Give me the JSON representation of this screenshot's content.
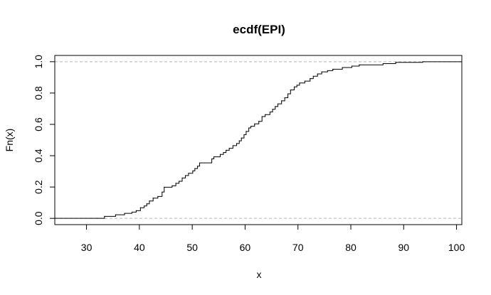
{
  "chart_data": {
    "type": "line",
    "title": "ecdf(EPI)",
    "xlabel": "x",
    "ylabel": "Fn(x)",
    "xlim": [
      24,
      101
    ],
    "ylim": [
      -0.04,
      1.04
    ],
    "x_ticks": [
      30,
      40,
      50,
      60,
      70,
      80,
      90,
      100
    ],
    "x_tick_labels": [
      "30",
      "40",
      "50",
      "60",
      "70",
      "80",
      "90",
      "100"
    ],
    "y_ticks": [
      0.0,
      0.2,
      0.4,
      0.6,
      0.8,
      1.0
    ],
    "y_tick_labels": [
      "0.0",
      "0.2",
      "0.4",
      "0.6",
      "0.8",
      "1.0"
    ],
    "reference_lines_y": [
      0,
      1
    ],
    "series": [
      {
        "step": true,
        "x": [
          32.1,
          33.4,
          35.5,
          37.2,
          38.6,
          39.4,
          40.2,
          40.9,
          41.4,
          41.9,
          42.6,
          43.5,
          44.3,
          44.7,
          46.2,
          46.9,
          47.5,
          48.1,
          48.7,
          49.3,
          50.1,
          50.5,
          51.0,
          51.4,
          53.7,
          54.1,
          55.3,
          55.9,
          56.4,
          57.0,
          57.7,
          58.4,
          58.9,
          59.3,
          59.8,
          60.2,
          60.7,
          61.1,
          61.8,
          62.6,
          63.2,
          63.8,
          64.7,
          65.2,
          65.7,
          66.2,
          66.9,
          67.5,
          68.1,
          68.6,
          69.3,
          69.8,
          70.3,
          71.3,
          72.3,
          72.9,
          73.7,
          74.5,
          75.6,
          76.6,
          78.4,
          80.2,
          81.6,
          86.1,
          88.5,
          93.6
        ],
        "y": [
          0.0,
          0.013,
          0.023,
          0.032,
          0.04,
          0.049,
          0.068,
          0.079,
          0.093,
          0.111,
          0.129,
          0.14,
          0.168,
          0.199,
          0.208,
          0.224,
          0.237,
          0.258,
          0.273,
          0.288,
          0.303,
          0.318,
          0.333,
          0.354,
          0.38,
          0.393,
          0.408,
          0.42,
          0.435,
          0.447,
          0.464,
          0.478,
          0.495,
          0.513,
          0.534,
          0.555,
          0.577,
          0.588,
          0.603,
          0.619,
          0.65,
          0.662,
          0.679,
          0.696,
          0.714,
          0.731,
          0.75,
          0.77,
          0.795,
          0.82,
          0.839,
          0.85,
          0.864,
          0.876,
          0.892,
          0.907,
          0.922,
          0.935,
          0.943,
          0.952,
          0.963,
          0.972,
          0.98,
          0.988,
          0.996,
          1.0
        ]
      }
    ]
  }
}
